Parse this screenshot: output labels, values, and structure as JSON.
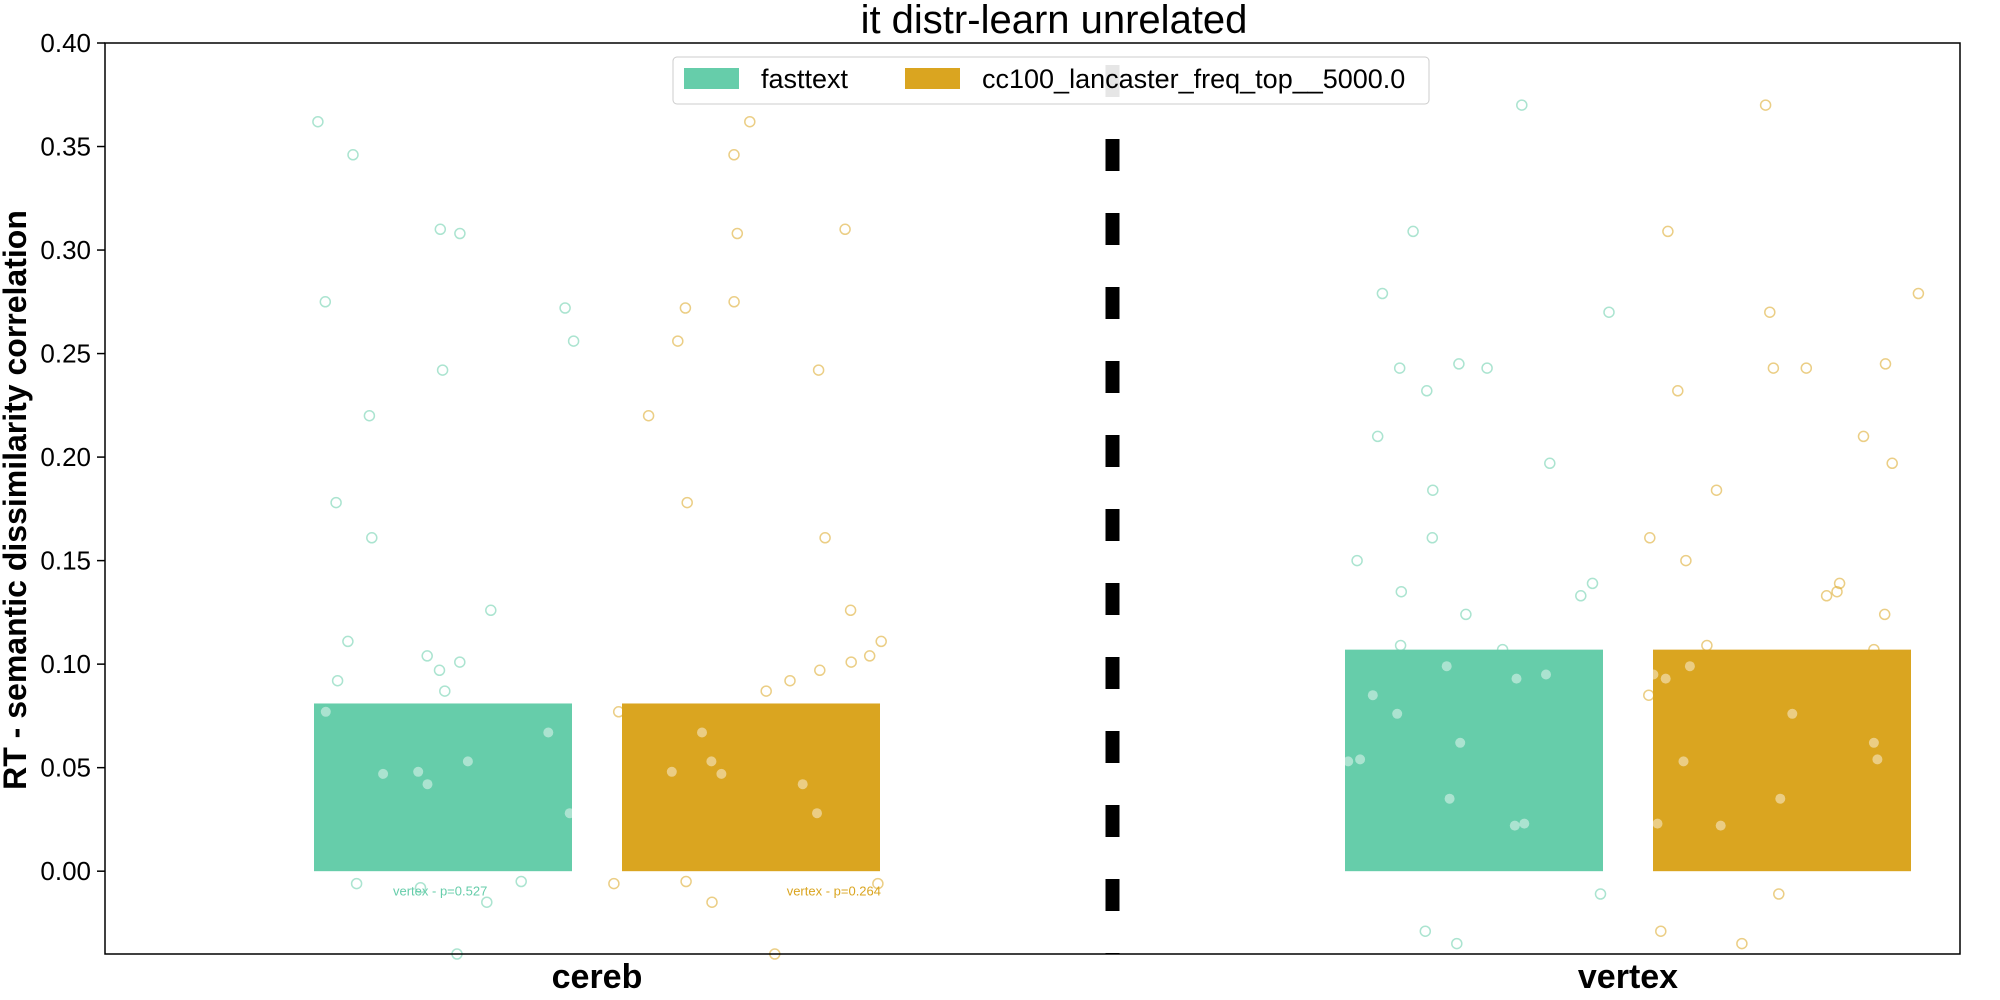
{
  "chart_data": {
    "type": "bar",
    "title": "it distr-learn unrelated",
    "xlabel": "",
    "ylabel": "RT - semantic dissimilarity correlation",
    "categories": [
      "cereb",
      "vertex"
    ],
    "ylim": [
      -0.04,
      0.4
    ],
    "yticks": [
      "0.00",
      "0.05",
      "0.10",
      "0.15",
      "0.20",
      "0.25",
      "0.30",
      "0.35",
      "0.40"
    ],
    "grid": false,
    "legend_position": "top-center",
    "series": [
      {
        "name": "fasttext",
        "color": "#66cdaa",
        "values": [
          0.081,
          0.107
        ],
        "points": [
          [
            0.31,
            0.308,
            0.178,
            0.161,
            0.104,
            0.087,
            0.077,
            0.067,
            0.053,
            0.048,
            0.047,
            -0.005,
            -0.015,
            0.275,
            0.242,
            0.22,
            0.126,
            0.111,
            0.101,
            0.097,
            0.346,
            0.362,
            0.272,
            0.256,
            0.092,
            0.042,
            0.028,
            -0.006,
            -0.008,
            -0.04
          ],
          [
            0.37,
            0.309,
            0.279,
            0.27,
            0.245,
            0.243,
            0.243,
            0.232,
            0.21,
            0.197,
            0.184,
            0.161,
            0.15,
            0.139,
            0.135,
            0.133,
            0.124,
            0.109,
            0.107,
            0.099,
            0.095,
            0.093,
            0.085,
            0.076,
            0.062,
            0.054,
            0.053,
            0.035,
            0.023,
            0.022,
            -0.011,
            -0.029,
            -0.035
          ]
        ]
      },
      {
        "name": "cc100_lancaster_freq_top__5000.0",
        "color": "#daa520",
        "values": [
          0.081,
          0.107
        ],
        "points": [
          [
            0.362,
            0.346,
            0.31,
            0.308,
            0.275,
            0.272,
            0.256,
            0.242,
            0.22,
            0.178,
            0.161,
            0.126,
            0.111,
            0.104,
            0.101,
            0.097,
            0.092,
            0.087,
            0.077,
            0.067,
            0.053,
            0.048,
            0.047,
            0.042,
            0.028,
            -0.005,
            -0.006,
            -0.006,
            -0.015,
            -0.04
          ],
          [
            0.37,
            0.309,
            0.279,
            0.27,
            0.245,
            0.243,
            0.243,
            0.232,
            0.21,
            0.197,
            0.184,
            0.161,
            0.15,
            0.139,
            0.135,
            0.133,
            0.124,
            0.109,
            0.107,
            0.099,
            0.095,
            0.093,
            0.085,
            0.076,
            0.062,
            0.054,
            0.053,
            0.035,
            0.023,
            0.022,
            -0.011,
            -0.029,
            -0.035
          ]
        ]
      }
    ],
    "annotations": [
      {
        "text": "vertex - p=0.527",
        "series": 0,
        "category": 0,
        "y": -0.008
      },
      {
        "text": "vertex - p=0.264",
        "series": 1,
        "category": 0,
        "y": -0.008
      }
    ],
    "divider": {
      "style": "dashed",
      "color": "#000000"
    }
  }
}
